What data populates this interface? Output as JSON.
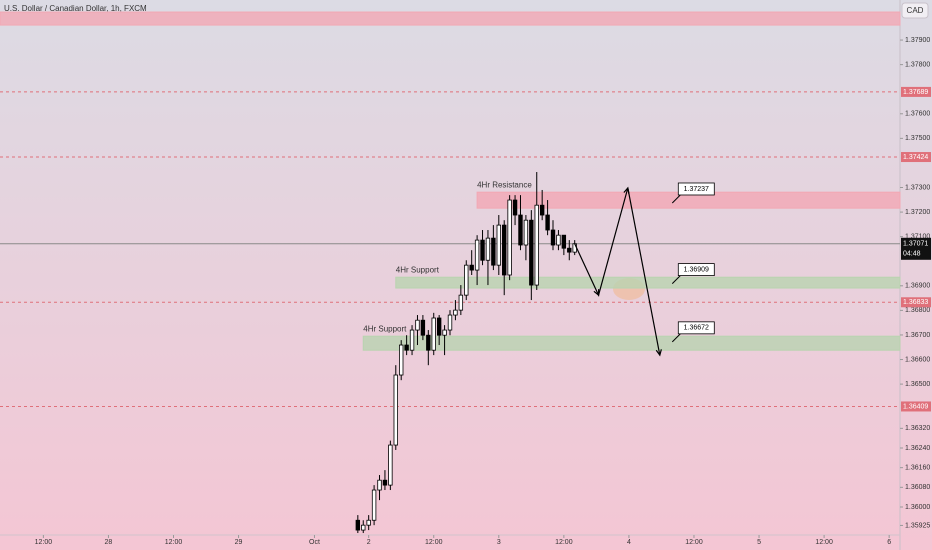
{
  "chart_data": {
    "type": "candlestick",
    "title": "U.S. Dollar / Canadian Dollar, 1h, FXCM",
    "currency": "CAD",
    "up_color": "#ffffff",
    "down_color": "#000000",
    "x": [
      0,
      1,
      2,
      3,
      4,
      5,
      6,
      7,
      8,
      9,
      10,
      11,
      12,
      13,
      14,
      15,
      16,
      17,
      18,
      19,
      20,
      21,
      22,
      23,
      24,
      25,
      26,
      27,
      28,
      29,
      30,
      31,
      32,
      33,
      34,
      35,
      36,
      37,
      38,
      39,
      40
    ],
    "open": [
      1.35946,
      1.35906,
      1.35926,
      1.35946,
      1.36069,
      1.36109,
      1.36089,
      1.36252,
      1.36537,
      1.36659,
      1.36638,
      1.3672,
      1.3676,
      1.36699,
      1.36638,
      1.36769,
      1.36699,
      1.3672,
      1.36781,
      1.36801,
      1.36862,
      1.36984,
      1.36964,
      1.37086,
      1.37004,
      1.37094,
      1.36984,
      1.37147,
      1.36944,
      1.37249,
      1.37188,
      1.37066,
      1.37167,
      1.36903,
      1.37228,
      1.37188,
      1.37127,
      1.37066,
      1.37106,
      1.37053,
      1.37037
    ],
    "high": [
      1.35967,
      1.35946,
      1.35967,
      1.36089,
      1.3613,
      1.3615,
      1.3627,
      1.36577,
      1.36679,
      1.36699,
      1.3674,
      1.36781,
      1.36781,
      1.3672,
      1.3679,
      1.36781,
      1.3674,
      1.36801,
      1.36842,
      1.36903,
      1.37004,
      1.37045,
      1.37106,
      1.37127,
      1.37127,
      1.37147,
      1.37188,
      1.37167,
      1.37269,
      1.37269,
      1.37269,
      1.37188,
      1.37208,
      1.37363,
      1.3729,
      1.37249,
      1.37167,
      1.37127,
      1.37106,
      1.37086,
      1.37086
    ],
    "low": [
      1.35894,
      1.35894,
      1.35906,
      1.35926,
      1.36028,
      1.36069,
      1.36069,
      1.36232,
      1.36516,
      1.36618,
      1.36618,
      1.36659,
      1.36679,
      1.36577,
      1.36618,
      1.36659,
      1.36618,
      1.36699,
      1.3676,
      1.36781,
      1.36842,
      1.36944,
      1.36903,
      1.36984,
      1.36903,
      1.36964,
      1.36944,
      1.36862,
      1.36923,
      1.37147,
      1.37045,
      1.37004,
      1.36842,
      1.36883,
      1.37167,
      1.37106,
      1.37045,
      1.37045,
      1.37025,
      1.37004,
      1.37025
    ],
    "close": [
      1.35906,
      1.35926,
      1.35946,
      1.36069,
      1.36109,
      1.36089,
      1.36252,
      1.36537,
      1.36659,
      1.36638,
      1.3672,
      1.3676,
      1.36699,
      1.36638,
      1.36769,
      1.36699,
      1.3672,
      1.36781,
      1.36801,
      1.36862,
      1.36984,
      1.36964,
      1.37086,
      1.37004,
      1.37094,
      1.36984,
      1.37147,
      1.36944,
      1.37249,
      1.37188,
      1.37066,
      1.37167,
      1.36903,
      1.37228,
      1.37188,
      1.37127,
      1.37066,
      1.37106,
      1.37053,
      1.37037,
      1.37071
    ],
    "xlim": [
      -66,
      100
    ],
    "ylim": [
      1.35886,
      1.38063
    ],
    "xticks": [
      {
        "value": -58,
        "label": "12:00"
      },
      {
        "value": -46,
        "label": "28"
      },
      {
        "value": -34,
        "label": "12:00"
      },
      {
        "value": -22,
        "label": "29"
      },
      {
        "value": -8,
        "label": "Oct"
      },
      {
        "value": 2,
        "label": "2"
      },
      {
        "value": 14,
        "label": "12:00"
      },
      {
        "value": 26,
        "label": "3"
      },
      {
        "value": 38,
        "label": "12:00"
      },
      {
        "value": 50,
        "label": "4"
      },
      {
        "value": 62,
        "label": "12:00"
      },
      {
        "value": 74,
        "label": "5"
      },
      {
        "value": 86,
        "label": "12:00"
      },
      {
        "value": 98,
        "label": "6"
      }
    ],
    "yticks": [
      {
        "value": 1.379,
        "label": "1.37900"
      },
      {
        "value": 1.378,
        "label": "1.37800"
      },
      {
        "value": 1.376,
        "label": "1.37600"
      },
      {
        "value": 1.375,
        "label": "1.37500"
      },
      {
        "value": 1.373,
        "label": "1.37300"
      },
      {
        "value": 1.372,
        "label": "1.37200"
      },
      {
        "value": 1.371,
        "label": "1.37100"
      },
      {
        "value": 1.369,
        "label": "1.36900"
      },
      {
        "value": 1.368,
        "label": "1.36800"
      },
      {
        "value": 1.367,
        "label": "1.36700"
      },
      {
        "value": 1.366,
        "label": "1.36600"
      },
      {
        "value": 1.365,
        "label": "1.36500"
      },
      {
        "value": 1.3632,
        "label": "1.36320"
      },
      {
        "value": 1.3624,
        "label": "1.36240"
      },
      {
        "value": 1.3616,
        "label": "1.36160"
      },
      {
        "value": 1.3608,
        "label": "1.36080"
      },
      {
        "value": 1.36,
        "label": "1.36000"
      },
      1.35925
    ],
    "levels": [
      1.37689,
      1.37424,
      1.36833,
      1.36409
    ],
    "level_color": "#e0707a",
    "current_price": 1.37071,
    "countdown": "04:48",
    "zones": [
      {
        "low": 1.37961,
        "high": 1.38014,
        "x_start": -66,
        "color": "#f2a8b4"
      },
      {
        "label": "4Hr Resistance",
        "low": 1.37216,
        "high": 1.37281,
        "x_start": 22,
        "color": "#f2a8b4"
      },
      {
        "label": "4Hr Support",
        "low": 1.36891,
        "high": 1.36935,
        "x_start": 7,
        "color": "#b9d3b0"
      },
      {
        "label": "4Hr Support",
        "low": 1.36638,
        "high": 1.36695,
        "x_start": 1,
        "color": "#b9d3b0"
      }
    ],
    "callouts": [
      {
        "value": 1.37237,
        "x": 58
      },
      {
        "value": 1.36909,
        "x": 58
      },
      {
        "value": 1.36672,
        "x": 58
      }
    ],
    "projection": {
      "x": [
        40,
        44.4,
        49.8,
        55.7
      ],
      "y": [
        1.37071,
        1.36862,
        1.37298,
        1.36618
      ]
    }
  }
}
